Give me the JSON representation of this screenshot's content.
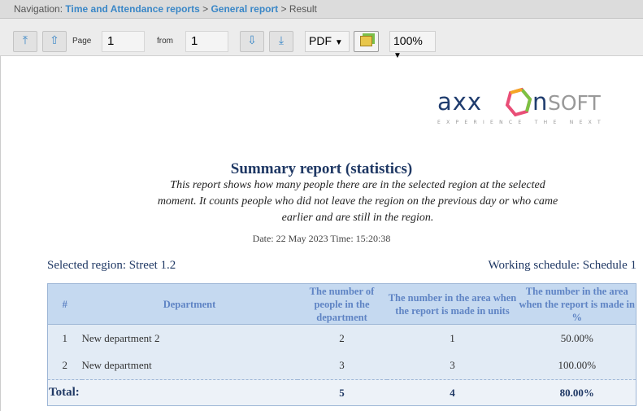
{
  "nav": {
    "prefix": "Navigation:",
    "crumbs": [
      "Time and Attendance reports",
      "General report"
    ],
    "sep": ">",
    "current": "Result"
  },
  "toolbar": {
    "page_label": "Page",
    "page_value": "1",
    "from_label": "from",
    "from_value": "1",
    "format": "PDF",
    "zoom": "100%"
  },
  "logo": {
    "text": "axxonsoft",
    "tagline": "EXPERIENCE THE NEXT"
  },
  "report": {
    "title": "Summary report (statistics)",
    "description": "This report shows how many people there are in the selected region at the selected moment. It counts people who did not leave the region on the previous day or who came earlier and are still in the region.",
    "date": "Date: 22 May 2023 Time: 15:20:38",
    "region": "Selected region: Street 1.2",
    "schedule": "Working schedule: Schedule 1"
  },
  "table": {
    "headers": [
      "#",
      "Department",
      "The number of people in the department",
      "The number in the area when the report is made in units",
      "The number in the area when the report is made in %"
    ],
    "rows": [
      [
        "1",
        "New department 2",
        "2",
        "1",
        "50.00%"
      ],
      [
        "2",
        "New department",
        "3",
        "3",
        "100.00%"
      ]
    ],
    "total": [
      "Total:",
      "5",
      "4",
      "80.00%"
    ]
  }
}
